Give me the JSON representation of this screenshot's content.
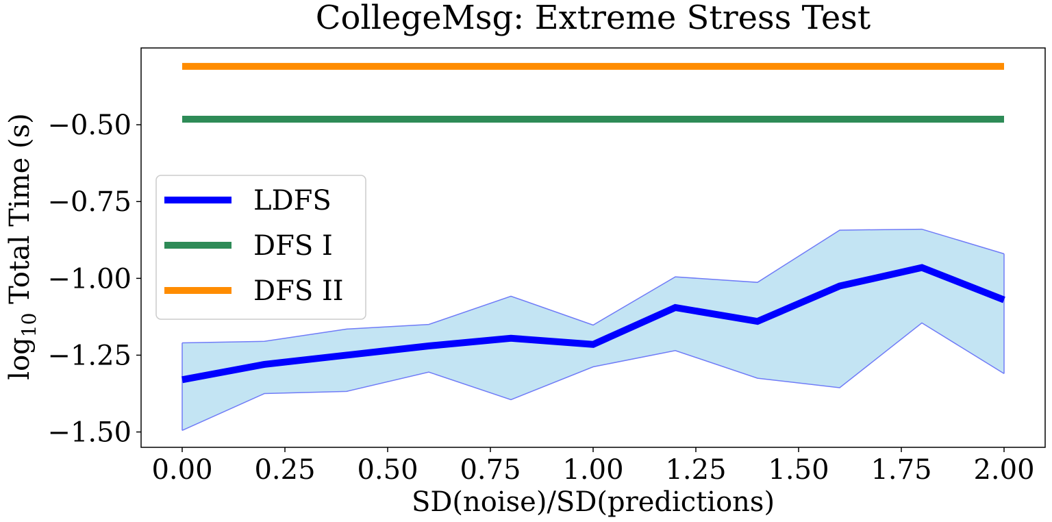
{
  "chart_data": {
    "type": "line",
    "title": "CollegeMsg: Extreme Stress Test",
    "xlabel": "SD(noise)/SD(predictions)",
    "ylabel_prefix": "log",
    "ylabel_subscript": "10",
    "ylabel_suffix": " Total Time (s)",
    "xlim": [
      -0.1,
      2.1
    ],
    "ylim": [
      -1.55,
      -0.25
    ],
    "x": [
      0.0,
      0.2,
      0.4,
      0.6,
      0.8,
      1.0,
      1.2,
      1.4,
      1.6,
      1.8,
      2.0
    ],
    "x_ticks": [
      0.0,
      0.25,
      0.5,
      0.75,
      1.0,
      1.25,
      1.5,
      1.75,
      2.0
    ],
    "x_tick_labels": [
      "0.00",
      "0.25",
      "0.50",
      "0.75",
      "1.00",
      "1.25",
      "1.50",
      "1.75",
      "2.00"
    ],
    "y_ticks": [
      -1.5,
      -1.25,
      -1.0,
      -0.75,
      -0.5
    ],
    "y_tick_labels": [
      "−1.50",
      "−1.25",
      "−1.00",
      "−0.75",
      "−0.50"
    ],
    "series": [
      {
        "name": "LDFS",
        "color": "#0000ff",
        "values": [
          -1.33,
          -1.28,
          -1.25,
          -1.22,
          -1.195,
          -1.215,
          -1.095,
          -1.14,
          -1.025,
          -0.965,
          -1.07
        ],
        "band_color": "#c3e4f3",
        "band_edge_color": "#6f7bf7",
        "band_upper": [
          -1.21,
          -1.205,
          -1.165,
          -1.15,
          -1.058,
          -1.152,
          -0.995,
          -1.013,
          -0.843,
          -0.84,
          -0.92
        ],
        "band_lower": [
          -1.495,
          -1.375,
          -1.368,
          -1.305,
          -1.395,
          -1.288,
          -1.235,
          -1.325,
          -1.356,
          -1.145,
          -1.31
        ]
      },
      {
        "name": "DFS I",
        "color": "#2e8b57",
        "values": [
          -0.482,
          -0.482,
          -0.482,
          -0.482,
          -0.482,
          -0.482,
          -0.482,
          -0.482,
          -0.482,
          -0.482,
          -0.482
        ]
      },
      {
        "name": "DFS II",
        "color": "#ff8c00",
        "values": [
          -0.31,
          -0.31,
          -0.31,
          -0.31,
          -0.31,
          -0.31,
          -0.31,
          -0.31,
          -0.31,
          -0.31,
          -0.31
        ]
      }
    ],
    "legend_position": "center-left",
    "grid": false
  }
}
